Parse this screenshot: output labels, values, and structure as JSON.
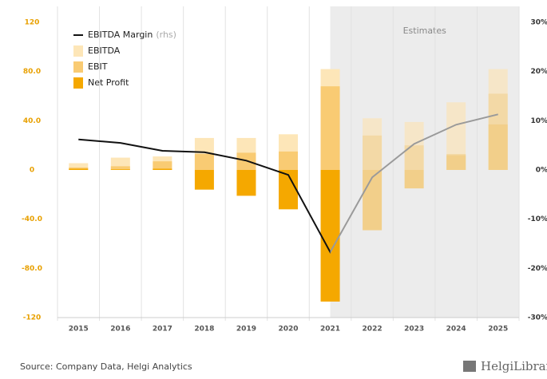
{
  "chart_data": {
    "type": "bar",
    "categories": [
      "2015",
      "2016",
      "2017",
      "2018",
      "2019",
      "2020",
      "2021",
      "2022",
      "2023",
      "2024",
      "2025"
    ],
    "estimates_label": "Estimates",
    "estimates_from": "2021",
    "series": [
      {
        "name": "EBITDA",
        "color": "#fde6b8",
        "estimate_color": "#f6e6c8",
        "values": [
          5.5,
          10,
          11,
          26,
          26,
          29,
          82,
          42,
          39,
          55,
          82
        ]
      },
      {
        "name": "EBIT",
        "color": "#f9cb73",
        "estimate_color": "#f3d9a6",
        "values": [
          2,
          3,
          7,
          13,
          14,
          15,
          68,
          28,
          20,
          13,
          62
        ]
      },
      {
        "name": "Net Profit",
        "color": "#f5a800",
        "estimate_color": "#f2cf8a",
        "values": [
          1,
          0.5,
          1,
          -16,
          -21,
          -32,
          -107,
          -49,
          -15,
          12,
          37
        ]
      },
      {
        "name": "EBITDA Margin",
        "note": "(rhs)",
        "type": "line",
        "axis": "y2",
        "color": "#111111",
        "estimate_color": "#9a9a9a",
        "values": [
          6.2,
          5.5,
          3.9,
          3.6,
          1.9,
          -1.0,
          -16.7,
          -1.5,
          5.3,
          9.2,
          11.3
        ]
      }
    ],
    "ylim": [
      -120,
      120
    ],
    "yticks": [
      {
        "value": -120,
        "label": "-120"
      },
      {
        "value": -80,
        "label": "-80.0"
      },
      {
        "value": -40,
        "label": "-40.0"
      },
      0,
      {
        "value": 40,
        "label": "40.0"
      },
      {
        "value": 80,
        "label": "80.0"
      },
      120
    ],
    "y2lim": [
      -30,
      30
    ],
    "y2ticks": [
      {
        "value": -30,
        "label": "-30%"
      },
      {
        "value": -20,
        "label": "-20%"
      },
      {
        "value": -10,
        "label": "-10%"
      },
      {
        "value": 0,
        "label": "0%"
      },
      {
        "value": 10,
        "label": "10%"
      },
      {
        "value": 20,
        "label": "20%"
      },
      {
        "value": 30,
        "label": "30%"
      }
    ],
    "legend": "top-left",
    "source": "Source: Company Data, Helgi Analytics",
    "logo": "HelgiLibrary"
  }
}
